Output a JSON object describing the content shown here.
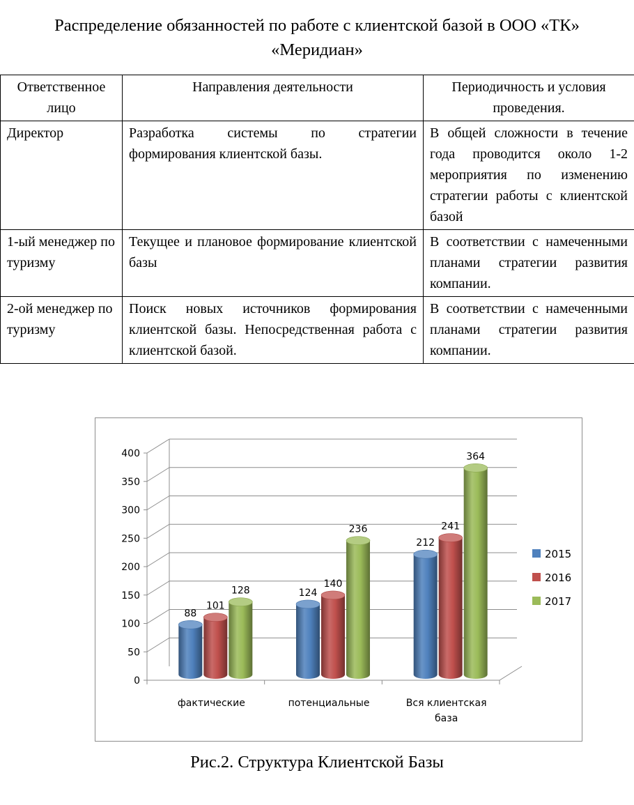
{
  "title": "Распределение обязанностей по работе с клиентской базой в ООО «ТК» «Меридиан»",
  "table": {
    "headers": [
      "Ответственное лицо",
      "Направления деятельности",
      "Периодичность и условия проведения."
    ],
    "rows": [
      [
        "Директор",
        "Разработка системы по стратегии формирования клиентской базы.",
        "В общей сложности в течение года проводится около 1-2 мероприятия по изменению стратегии работы с клиентской базой"
      ],
      [
        "1-ый менеджер по туризму",
        "Текущее и плановое формирование клиентской базы",
        "В соответствии с намеченными планами стратегии развития компании."
      ],
      [
        "2-ой менеджер по туризму",
        "Поиск новых источников формирования клиентской базы. Непосредственная работа с клиентской базой.",
        "В соответствии с намеченными планами стратегии развития компании."
      ]
    ]
  },
  "chart_data": {
    "type": "bar",
    "style": "3d-cylinder",
    "categories": [
      "фактические",
      "потенциальные",
      "Вся клиентская база"
    ],
    "series": [
      {
        "name": "2015",
        "values": [
          88,
          124,
          212
        ],
        "color": "#4f81bd"
      },
      {
        "name": "2016",
        "values": [
          101,
          140,
          241
        ],
        "color": "#c0504d"
      },
      {
        "name": "2017",
        "values": [
          128,
          236,
          364
        ],
        "color": "#9bbb59"
      }
    ],
    "ylim": [
      0,
      400
    ],
    "yticks": [
      "0",
      "50",
      "100",
      "150",
      "200",
      "250",
      "300",
      "350",
      "400"
    ],
    "grid": true,
    "legend": "right",
    "data_labels": true
  },
  "caption": "Рис.2. Структура Клиентской Базы"
}
